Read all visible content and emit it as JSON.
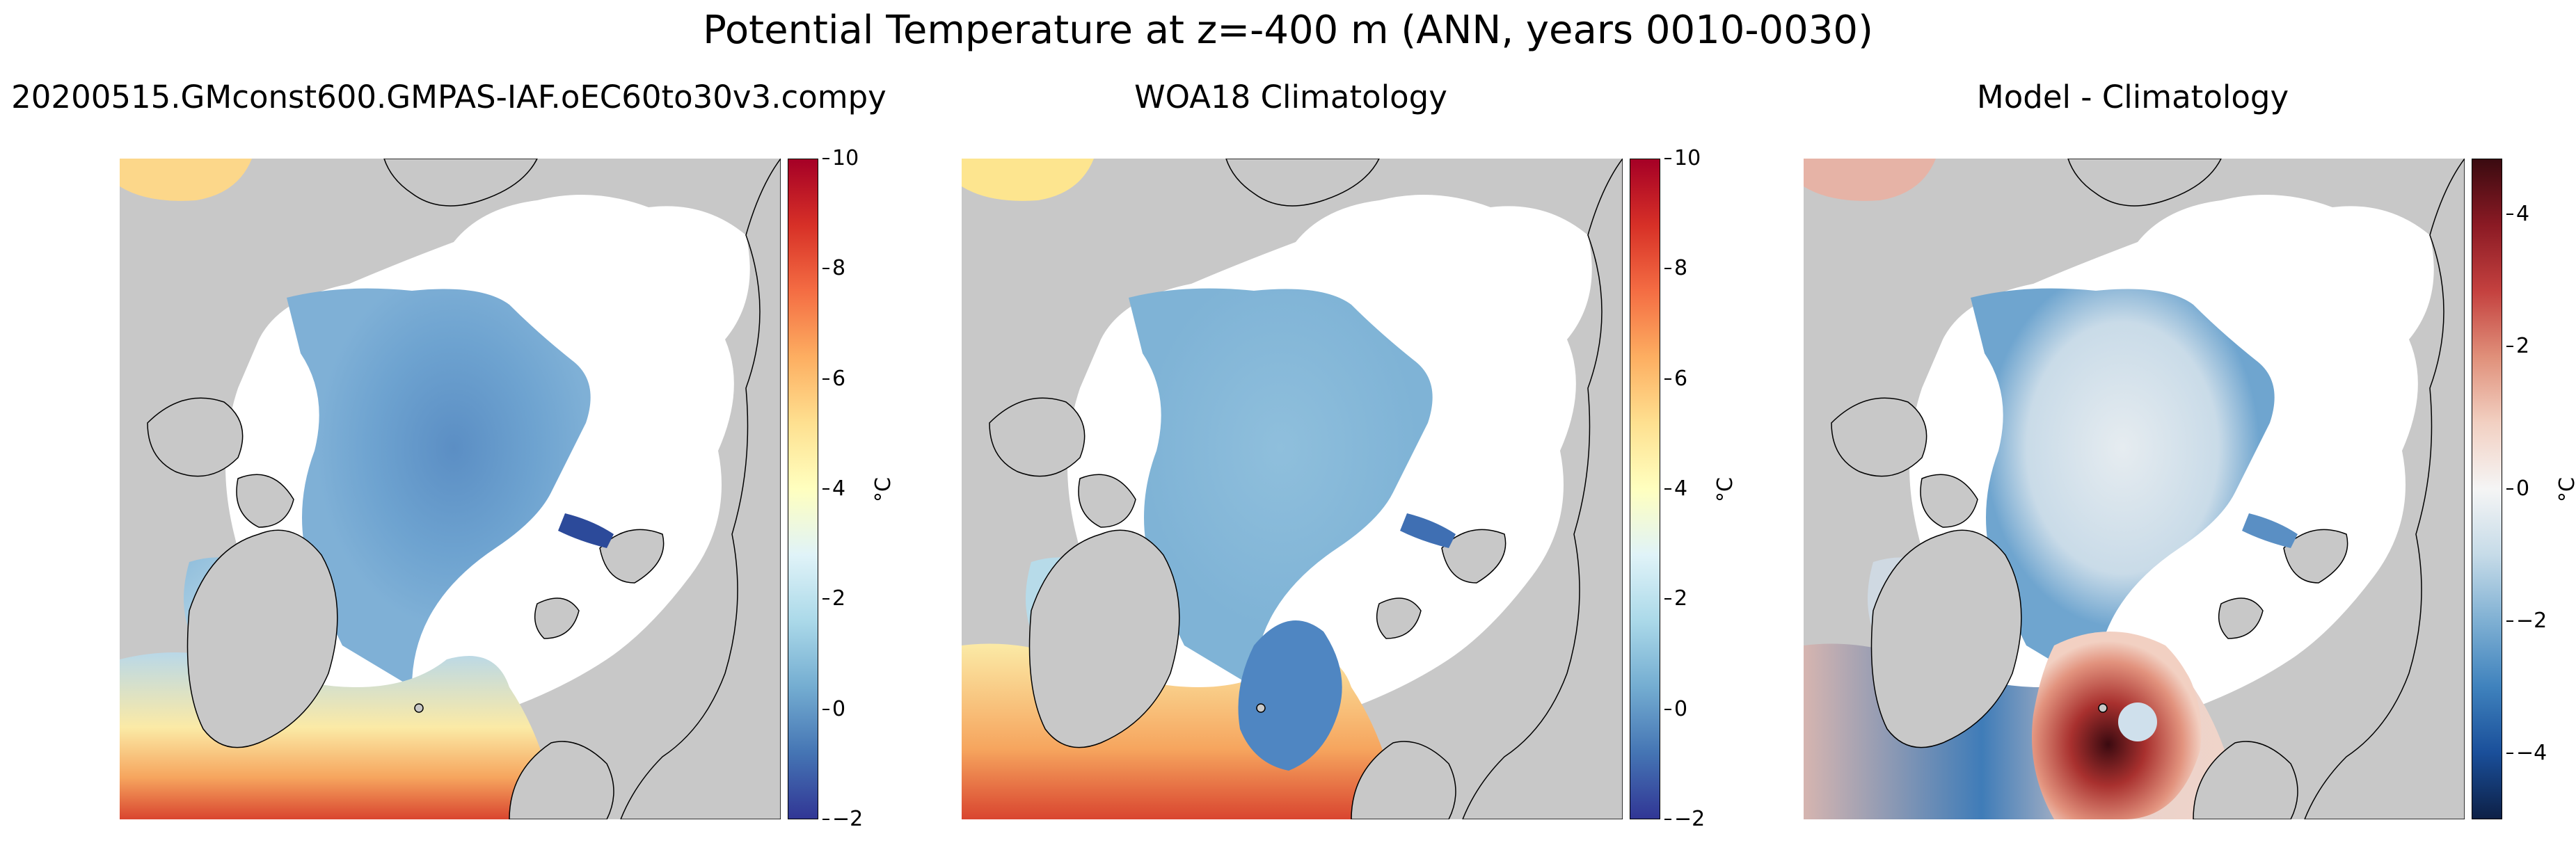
{
  "figure": {
    "suptitle": "Potential Temperature at z=-400 m (ANN, years 0010-0030)"
  },
  "panels": [
    {
      "title": "20200515.GMconst600.GMPAS-IAF.oEC60to30v3.compy",
      "colormap": "RdYlBu_r",
      "colorbar": {
        "label": "°C",
        "range": [
          -2,
          10
        ],
        "ticks": [
          "10",
          "8",
          "6",
          "4",
          "2",
          "0",
          "−2"
        ],
        "colors": [
          "#67001f",
          "#b2182b",
          "#d6604d",
          "#f4a582",
          "#fddbc7",
          "#f7f7f7",
          "#d1e5f0",
          "#92c5de",
          "#4393c3",
          "#2166ac",
          "#313695"
        ]
      },
      "field": "model"
    },
    {
      "title": "WOA18 Climatology",
      "colormap": "RdYlBu_r",
      "colorbar": {
        "label": "°C",
        "range": [
          -2,
          10
        ],
        "ticks": [
          "10",
          "8",
          "6",
          "4",
          "2",
          "0",
          "−2"
        ],
        "colors": [
          "#a50026",
          "#d73027",
          "#f46d43",
          "#fdae61",
          "#fee090",
          "#ffffbf",
          "#e0f3f8",
          "#abd9e9",
          "#74add1",
          "#4575b4",
          "#313695"
        ]
      },
      "field": "climatology"
    },
    {
      "title": "Model - Climatology",
      "colormap": "RdBu_r diverging",
      "colorbar": {
        "label": "°C",
        "range": [
          -5,
          5
        ],
        "ticks": [
          "4",
          "2",
          "0",
          "−2",
          "−4"
        ],
        "colors": [
          "#3a0a10",
          "#8b1a24",
          "#c4413f",
          "#e0907a",
          "#f2d0c2",
          "#f5f5f5",
          "#c6dbe8",
          "#7fb0d3",
          "#3f82bd",
          "#1a4f9a",
          "#0d2046"
        ]
      },
      "field": "difference"
    }
  ],
  "map_colors": {
    "land": "#c8c8c8",
    "no_data": "#ffffff",
    "coastline": "#000000"
  }
}
